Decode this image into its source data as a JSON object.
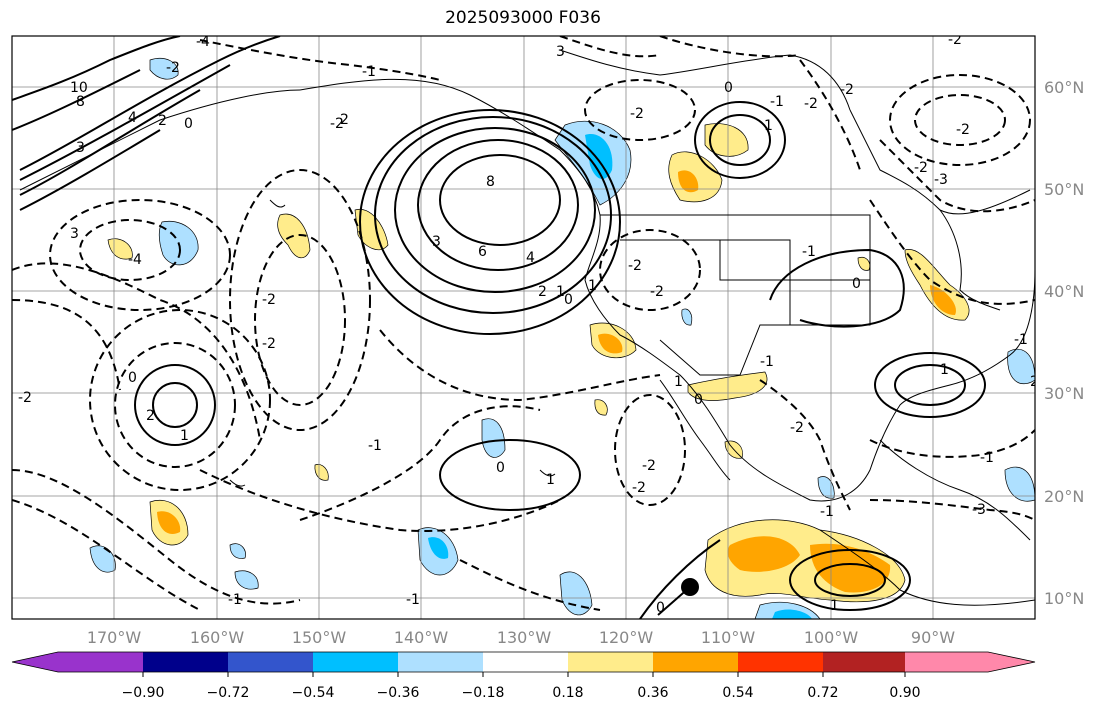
{
  "title": "2025093000 F036",
  "lat_labels": [
    "60°N",
    "50°N",
    "40°N",
    "30°N",
    "20°N",
    "10°N"
  ],
  "lon_labels": [
    "170°W",
    "160°W",
    "150°W",
    "140°W",
    "130°W",
    "120°W",
    "110°W",
    "100°W",
    "90°W"
  ],
  "colorbar": {
    "colors": [
      "#9933cc",
      "#00008b",
      "#3355cc",
      "#00bfff",
      "#aee0ff",
      "#ffffff",
      "#ffec8b",
      "#ffa500",
      "#ff3300",
      "#b22222",
      "#ff88aa"
    ],
    "tick_labels": [
      "−0.90",
      "−0.72",
      "−0.54",
      "−0.36",
      "−0.18",
      "0.18",
      "0.36",
      "0.54",
      "0.72",
      "0.90"
    ]
  },
  "contour_labels": [
    "10",
    "8",
    "4",
    "3",
    "3",
    "2",
    "0",
    "3",
    "2",
    "8",
    "6",
    "4",
    "3",
    "2",
    "1",
    "0",
    "1",
    "-4",
    "-2",
    "-2",
    "-2",
    "-2",
    "-2",
    "-1",
    "-1",
    "-1",
    "-2",
    "-2",
    "-2",
    "0",
    "1",
    "2",
    "1",
    "0",
    "1",
    "0",
    "1",
    "2",
    "-2",
    "-2",
    "-1",
    "-3",
    "0",
    "1",
    "-1",
    "-2",
    "0",
    "-2",
    "-1",
    "1",
    "-1",
    "-2",
    "-3",
    "-1",
    "0",
    "-2",
    "-1",
    "-2",
    "-1",
    "-4",
    "-2"
  ]
}
